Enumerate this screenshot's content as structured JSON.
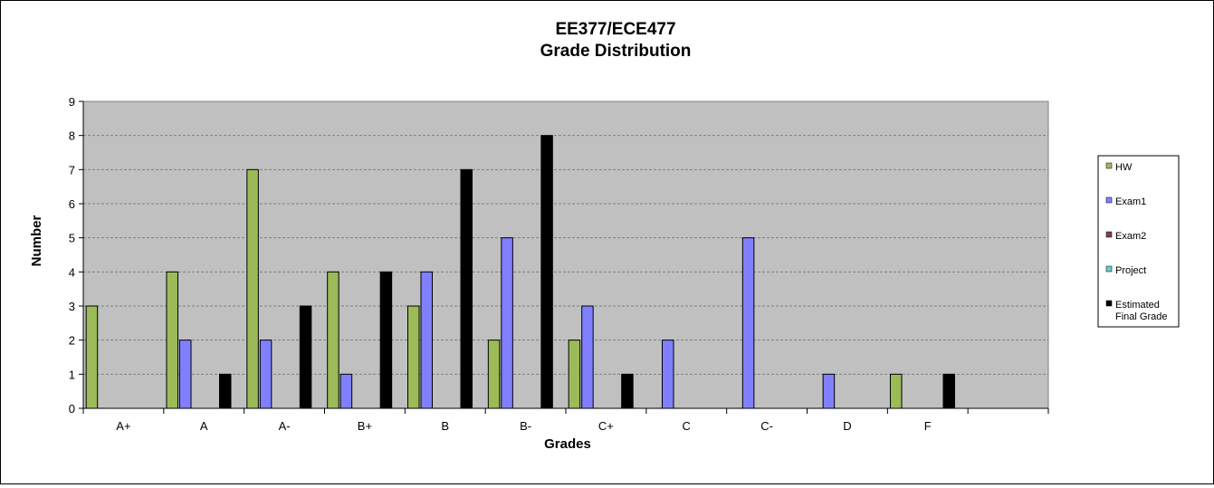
{
  "chart_data": {
    "type": "bar",
    "title_lines": [
      "EE377/ECE477",
      "Grade Distribution"
    ],
    "xlabel": "Grades",
    "ylabel": "Number",
    "ylim": [
      0,
      9
    ],
    "yticks": [
      "0",
      "1",
      "2",
      "3",
      "4",
      "5",
      "6",
      "7",
      "8",
      "9"
    ],
    "grid": true,
    "legend_position": "right",
    "categories": [
      "A+",
      "A",
      "A-",
      "B+",
      "B",
      "B-",
      "C+",
      "C",
      "C-",
      "D",
      "F",
      ""
    ],
    "series": [
      {
        "name": "HW",
        "color": "#9BBB59",
        "values": [
          3,
          4,
          7,
          4,
          3,
          2,
          2,
          0,
          0,
          0,
          1,
          0
        ]
      },
      {
        "name": "Exam1",
        "color": "#8080FF",
        "values": [
          0,
          2,
          2,
          1,
          4,
          5,
          3,
          2,
          5,
          1,
          0,
          0
        ]
      },
      {
        "name": "Exam2",
        "color": "#7F3F5F",
        "values": [
          0,
          0,
          0,
          0,
          0,
          0,
          0,
          0,
          0,
          0,
          0,
          0
        ]
      },
      {
        "name": "Project",
        "color": "#66CCCC",
        "values": [
          0,
          0,
          0,
          0,
          0,
          0,
          0,
          0,
          0,
          0,
          0,
          0
        ]
      },
      {
        "name": "Estimated Final Grade",
        "color": "#000000",
        "values": [
          0,
          1,
          3,
          4,
          7,
          8,
          1,
          0,
          0,
          0,
          1,
          0
        ],
        "legend_lines": [
          "Estimated",
          "Final Grade"
        ]
      }
    ],
    "plot_background": "#C0C0C0"
  }
}
